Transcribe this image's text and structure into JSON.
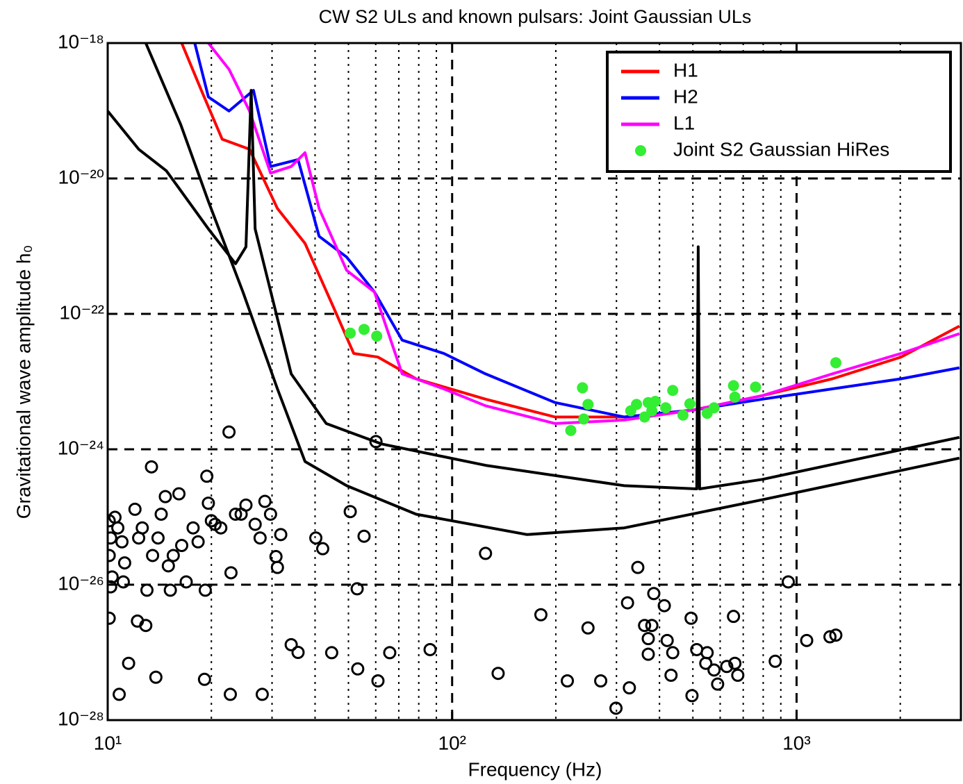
{
  "chart_data": {
    "type": "line",
    "title": "CW S2 ULs and known pulsars: Joint Gaussian ULs",
    "x_label": "Frequency (Hz)",
    "y_label": "Gravitational wave amplitude h₀",
    "xscale": "log",
    "yscale": "log",
    "xlim": [
      10,
      3000
    ],
    "ylim": [
      1e-28,
      1e-18
    ],
    "xticks": [
      {
        "value": 10,
        "label": "10¹"
      },
      {
        "value": 100,
        "label": "10²"
      },
      {
        "value": 1000,
        "label": "10³"
      }
    ],
    "xminorticks": [
      20,
      30,
      40,
      50,
      60,
      70,
      80,
      90,
      200,
      300,
      400,
      500,
      600,
      700,
      800,
      900,
      2000
    ],
    "yticks": [
      {
        "value": 1e-28,
        "label": "10⁻²⁸"
      },
      {
        "value": 1e-26,
        "label": "10⁻²⁶"
      },
      {
        "value": 1e-24,
        "label": "10⁻²⁴"
      },
      {
        "value": 1e-22,
        "label": "10⁻²²"
      },
      {
        "value": 1e-20,
        "label": "10⁻²⁰"
      },
      {
        "value": 1e-18,
        "label": "10⁻¹⁸"
      }
    ],
    "grid": true,
    "legend": "upper right",
    "series": [
      {
        "name": "H1",
        "color": "#ff0000",
        "marker": "line",
        "x": [
          16.4,
          18.7,
          21.5,
          25.8,
          31.1,
          37.4,
          45.1,
          51.8,
          60.9,
          78.6,
          125,
          199,
          316,
          501,
          796,
          1270,
          2010,
          2970
        ],
        "values": [
          1e-18,
          2e-19,
          3.8e-20,
          2.7e-20,
          3.6e-21,
          1.1e-21,
          1.3e-22,
          2.6e-23,
          2.3e-23,
          1.1e-23,
          5.5e-24,
          3e-24,
          3e-24,
          3.8e-24,
          6.2e-24,
          1.1e-23,
          2.3e-23,
          6.6e-23
        ]
      },
      {
        "name": "H2",
        "color": "#0000ff",
        "marker": "line",
        "x": [
          17.9,
          19.6,
          22.5,
          26.5,
          29.7,
          35.7,
          41.1,
          49.4,
          59.5,
          71.6,
          94.6,
          125,
          199,
          316,
          501,
          796,
          1270,
          2010,
          2970
        ],
        "values": [
          1e-18,
          1.6e-19,
          9.9e-20,
          2e-19,
          1.5e-20,
          1.9e-20,
          1.4e-21,
          6.9e-22,
          2.1e-22,
          4.1e-23,
          2.6e-23,
          1.3e-23,
          4.9e-24,
          3e-24,
          3.8e-24,
          5.5e-24,
          7.8e-24,
          1.1e-23,
          1.6e-23
        ]
      },
      {
        "name": "L1",
        "color": "#ff00ff",
        "marker": "line",
        "x": [
          19.6,
          22.5,
          25.8,
          29.7,
          34.1,
          37.4,
          41.1,
          49.4,
          59.5,
          71.6,
          94.6,
          125,
          199,
          316,
          501,
          796,
          1270,
          2010,
          2970
        ],
        "values": [
          1e-18,
          4.1e-19,
          9.9e-20,
          1.2e-20,
          1.5e-20,
          2.4e-20,
          3.6e-21,
          4.4e-22,
          2.1e-22,
          1.3e-23,
          7.8e-24,
          4.4e-24,
          2.4e-24,
          2.7e-24,
          3.8e-24,
          6.2e-24,
          1.3e-23,
          2.6e-23,
          5.1e-23
        ]
      },
      {
        "name": "Joint S2 Gaussian HiRes",
        "color": "#33ee33",
        "marker": "dot",
        "x": [
          50.6,
          55.5,
          60.4,
          221,
          239,
          241,
          248,
          330,
          343,
          362,
          371,
          380,
          389,
          417,
          437,
          468,
          490,
          550,
          576,
          656,
          662,
          760,
          1300
        ],
        "values": [
          5.2e-23,
          5.9e-23,
          4.7e-23,
          1.9e-24,
          8.1e-24,
          2.8e-24,
          4.6e-24,
          3.7e-24,
          4.6e-24,
          3e-24,
          4.9e-24,
          3.7e-24,
          5.1e-24,
          4.1e-24,
          7.4e-24,
          3.2e-24,
          4.7e-24,
          3.4e-24,
          4.1e-24,
          8.7e-24,
          5.9e-24,
          8.3e-24,
          1.9e-23
        ]
      },
      {
        "color": "#000000",
        "marker": "line",
        "x": [
          10,
          12.3,
          14.8,
          19.6,
          23.5,
          25.2,
          26.1,
          26.8,
          34.1,
          43.1,
          62.4,
          125,
          316,
          513,
          518,
          523,
          796,
          2970
        ],
        "values": [
          9.9e-20,
          2.7e-20,
          1.3e-20,
          1.8e-21,
          5.5e-22,
          9.8e-22,
          2e-19,
          1.8e-21,
          1.3e-23,
          2.4e-24,
          1.2e-24,
          5.8e-25,
          2.9e-25,
          2.6e-25,
          9.8e-22,
          2.6e-25,
          3.6e-25,
          1.5e-24
        ]
      },
      {
        "color": "#000000",
        "marker": "line",
        "x": [
          12.9,
          16.3,
          19.6,
          24.7,
          31.1,
          37.4,
          49.4,
          78.6,
          165,
          316,
          796,
          2970
        ],
        "values": [
          1e-18,
          6.2e-20,
          4.6e-21,
          2.1e-22,
          7.8e-24,
          6.6e-25,
          2.9e-25,
          1.1e-25,
          5.5e-26,
          6.9e-26,
          1.8e-25,
          7.4e-25
        ]
      },
      {
        "color": "#000000",
        "marker": "circle",
        "x": [
          10.1,
          10.2,
          10.1,
          10.3,
          10.2,
          10.1,
          10.8,
          10.5,
          10.7,
          11.0,
          11.2,
          11.1,
          11.5,
          12.0,
          12.3,
          12.2,
          12.6,
          12.9,
          13.0,
          13.4,
          13.5,
          13.8,
          14.0,
          14.3,
          14.7,
          15.0,
          15.2,
          15.5,
          16.1,
          16.4,
          16.9,
          17.7,
          18.3,
          19.1,
          19.4,
          19.2,
          19.6,
          20.0,
          20.5,
          21.3,
          22.5,
          22.8,
          22.7,
          23.5,
          24.4,
          25.2,
          26.8,
          28.1,
          27.7,
          28.6,
          29.7,
          30.8,
          31.1,
          31.8,
          34.1,
          35.7,
          40.2,
          42.1,
          44.7,
          50.6,
          53.0,
          53.2,
          55.5,
          60.1,
          60.9,
          65.9,
          86.3,
          125,
          136,
          181,
          216,
          248,
          270,
          299,
          323,
          327,
          346,
          362,
          371,
          371,
          380,
          385,
          413,
          421,
          432,
          437,
          494,
          497,
          513,
          550,
          545,
          576,
          590,
          627,
          656,
          662,
          675,
          867,
          946,
          1070,
          1250,
          1300
        ],
        "values": [
          8.8e-26,
          4.9e-26,
          2.7e-26,
          1.3e-26,
          9.3e-27,
          3.2e-27,
          2.4e-28,
          9.9e-26,
          6.9e-26,
          4.3e-26,
          2.1e-26,
          1.1e-26,
          6.9e-28,
          1.3e-25,
          4.9e-26,
          2.9e-27,
          6.9e-26,
          2.5e-27,
          8.3e-27,
          5.5e-25,
          2.7e-26,
          4.3e-28,
          4.9e-26,
          1.1e-25,
          2e-25,
          1.9e-26,
          8.3e-27,
          2.7e-26,
          2.2e-25,
          3.8e-26,
          1.1e-26,
          6.9e-26,
          4.3e-26,
          4e-28,
          4e-25,
          8.3e-27,
          1.6e-25,
          8.8e-26,
          7.8e-26,
          6.9e-26,
          1.8e-24,
          1.5e-26,
          2.4e-28,
          1.1e-25,
          1.1e-25,
          1.5e-25,
          7.8e-26,
          2.4e-28,
          4.9e-26,
          1.7e-25,
          1.1e-25,
          2.6e-26,
          1.8e-26,
          5.5e-26,
          1.3e-27,
          1e-27,
          4.9e-26,
          3.4e-26,
          9.9e-28,
          1.2e-25,
          8.7e-27,
          5.7e-28,
          5.2e-26,
          1.3e-24,
          3.8e-28,
          9.9e-28,
          1.1e-27,
          2.9e-26,
          4.9e-28,
          3.6e-27,
          3.8e-28,
          2.3e-27,
          3.8e-28,
          1.5e-28,
          5.4e-27,
          3e-28,
          1.8e-26,
          2.5e-27,
          1.6e-27,
          9.4e-28,
          2.5e-27,
          7.4e-27,
          4.9e-27,
          1.5e-27,
          4.6e-28,
          9.9e-28,
          3.2e-27,
          2.3e-28,
          1.1e-27,
          9.9e-28,
          6.9e-28,
          5.5e-28,
          3.4e-28,
          6.2e-28,
          3.4e-27,
          6.9e-28,
          4.6e-28,
          7.4e-28,
          1.1e-26,
          1.5e-27,
          1.7e-27,
          1.8e-27
        ]
      }
    ]
  }
}
